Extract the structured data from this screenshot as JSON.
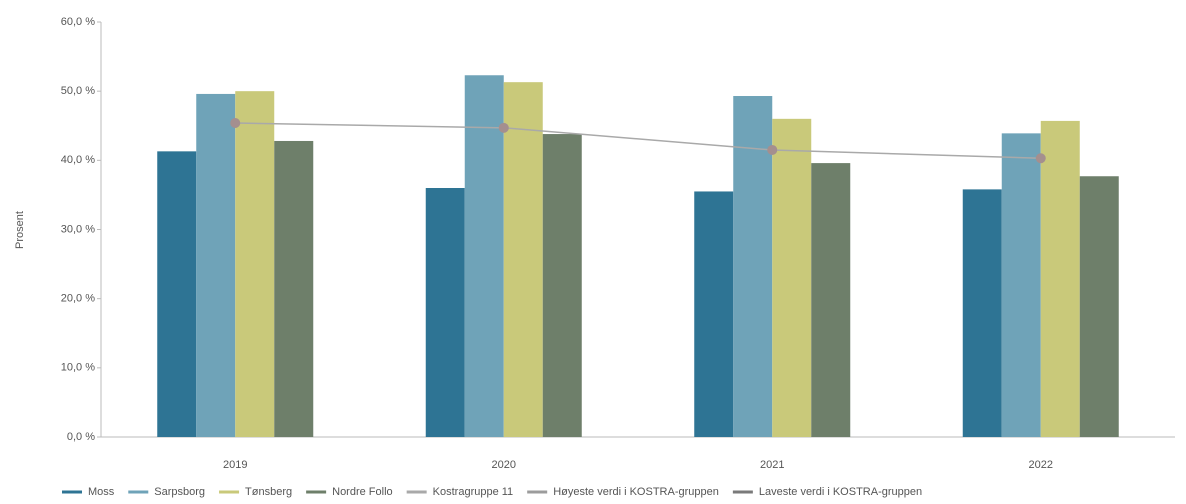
{
  "chart_data": {
    "type": "bar",
    "y_label": "Prosent",
    "categories": [
      "2019",
      "2020",
      "2021",
      "2022"
    ],
    "series": [
      {
        "name": "Moss",
        "color": "#2e7494",
        "type": "bar",
        "values": [
          41.3,
          36.0,
          35.5,
          35.8
        ]
      },
      {
        "name": "Sarpsborg",
        "color": "#6fa3b8",
        "type": "bar",
        "values": [
          49.6,
          52.3,
          49.3,
          43.9
        ]
      },
      {
        "name": "Tønsberg",
        "color": "#c9c97a",
        "type": "bar",
        "values": [
          50.0,
          51.3,
          46.0,
          45.7
        ]
      },
      {
        "name": "Nordre Follo",
        "color": "#6e7f6a",
        "type": "bar",
        "values": [
          42.8,
          43.8,
          39.6,
          37.7
        ]
      },
      {
        "name": "Kostragruppe 11",
        "color": "#a9a9a9",
        "type": "line",
        "values": [
          45.4,
          44.7,
          41.5,
          40.3
        ]
      },
      {
        "name": "Høyeste verdi i KOSTRA-gruppen",
        "color": "#9c9c9c",
        "type": "line",
        "values": [
          null,
          null,
          null,
          null
        ]
      },
      {
        "name": "Laveste verdi i KOSTRA-gruppen",
        "color": "#7a7a7a",
        "type": "line",
        "values": [
          null,
          null,
          null,
          null
        ]
      }
    ],
    "ylim": [
      0,
      60
    ],
    "yticks": [
      {
        "value": 0,
        "label": "0,0 %"
      },
      {
        "value": 10,
        "label": "10,0 %"
      },
      {
        "value": 20,
        "label": "20,0 %"
      },
      {
        "value": 30,
        "label": "30,0 %"
      },
      {
        "value": 40,
        "label": "40,0 %"
      },
      {
        "value": 50,
        "label": "50,0 %"
      },
      {
        "value": 60,
        "label": "60,0 %"
      }
    ],
    "legend": "bottom"
  }
}
